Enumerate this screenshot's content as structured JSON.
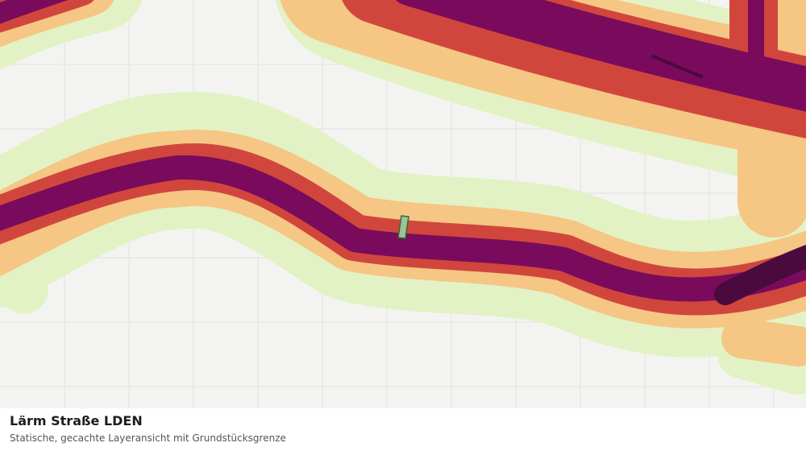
{
  "title": "Lärm Straße LDEN",
  "subtitle": "Statische, gecachte Layeransicht mit Grundstücksgrenze"
}
